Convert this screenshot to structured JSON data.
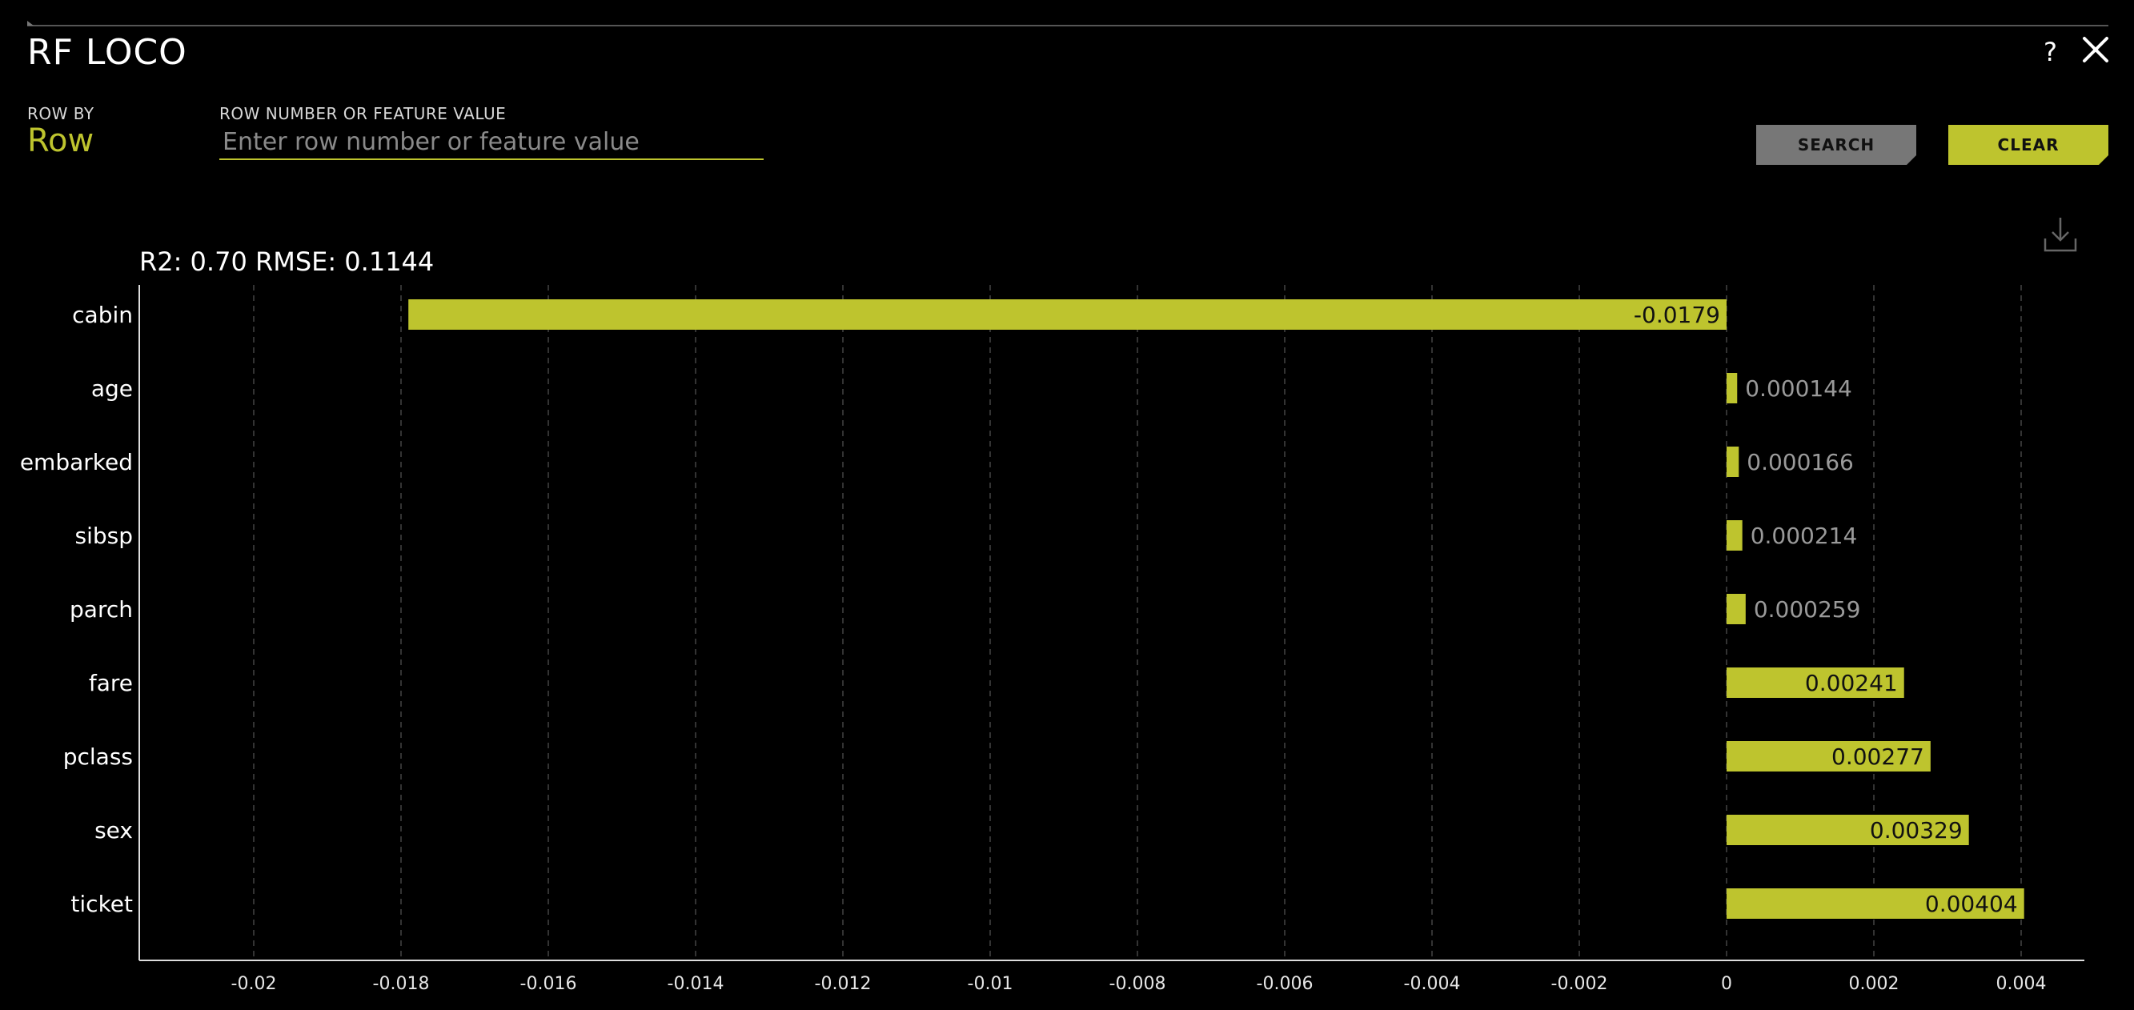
{
  "window": {
    "title": "RF LOCO",
    "help_label": "?",
    "close_icon": "close-icon"
  },
  "controls": {
    "row_by_label": "ROW BY",
    "row_by_value": "Row",
    "search_label": "ROW NUMBER OR FEATURE VALUE",
    "search_placeholder": "Enter row number or feature value",
    "search_value": "",
    "search_button": "SEARCH",
    "clear_button": "CLEAR",
    "download_icon": "download-icon"
  },
  "colors": {
    "background": "#000000",
    "accent": "#bec42e",
    "search_button": "#777777",
    "grid": "#444444",
    "axis": "#dddddd",
    "outside_label": "#9a9a9a"
  },
  "chart_data": {
    "type": "bar",
    "orientation": "horizontal",
    "title": "R2: 0.70 RMSE: 0.1144",
    "categories": [
      "cabin",
      "age",
      "embarked",
      "sibsp",
      "parch",
      "fare",
      "pclass",
      "sex",
      "ticket"
    ],
    "values": [
      -0.0179,
      0.000144,
      0.000166,
      0.000214,
      0.000259,
      0.00241,
      0.00277,
      0.00329,
      0.00404
    ],
    "value_labels": [
      "-0.0179",
      "0.000144",
      "0.000166",
      "0.000214",
      "0.000259",
      "0.00241",
      "0.00277",
      "0.00329",
      "0.00404"
    ],
    "xlim": [
      -0.0217,
      0.0048
    ],
    "xticks": [
      -0.02,
      -0.018,
      -0.016,
      -0.014,
      -0.012,
      -0.01,
      -0.008,
      -0.006,
      -0.004,
      -0.002,
      0,
      0.002,
      0.004
    ],
    "xtick_labels": [
      "-0.02",
      "-0.018",
      "-0.016",
      "-0.014",
      "-0.012",
      "-0.01",
      "-0.008",
      "-0.006",
      "-0.004",
      "-0.002",
      "0",
      "0.002",
      "0.004"
    ],
    "xlabel": "",
    "ylabel": "",
    "grid": "vertical-dashed",
    "legend": "none"
  }
}
